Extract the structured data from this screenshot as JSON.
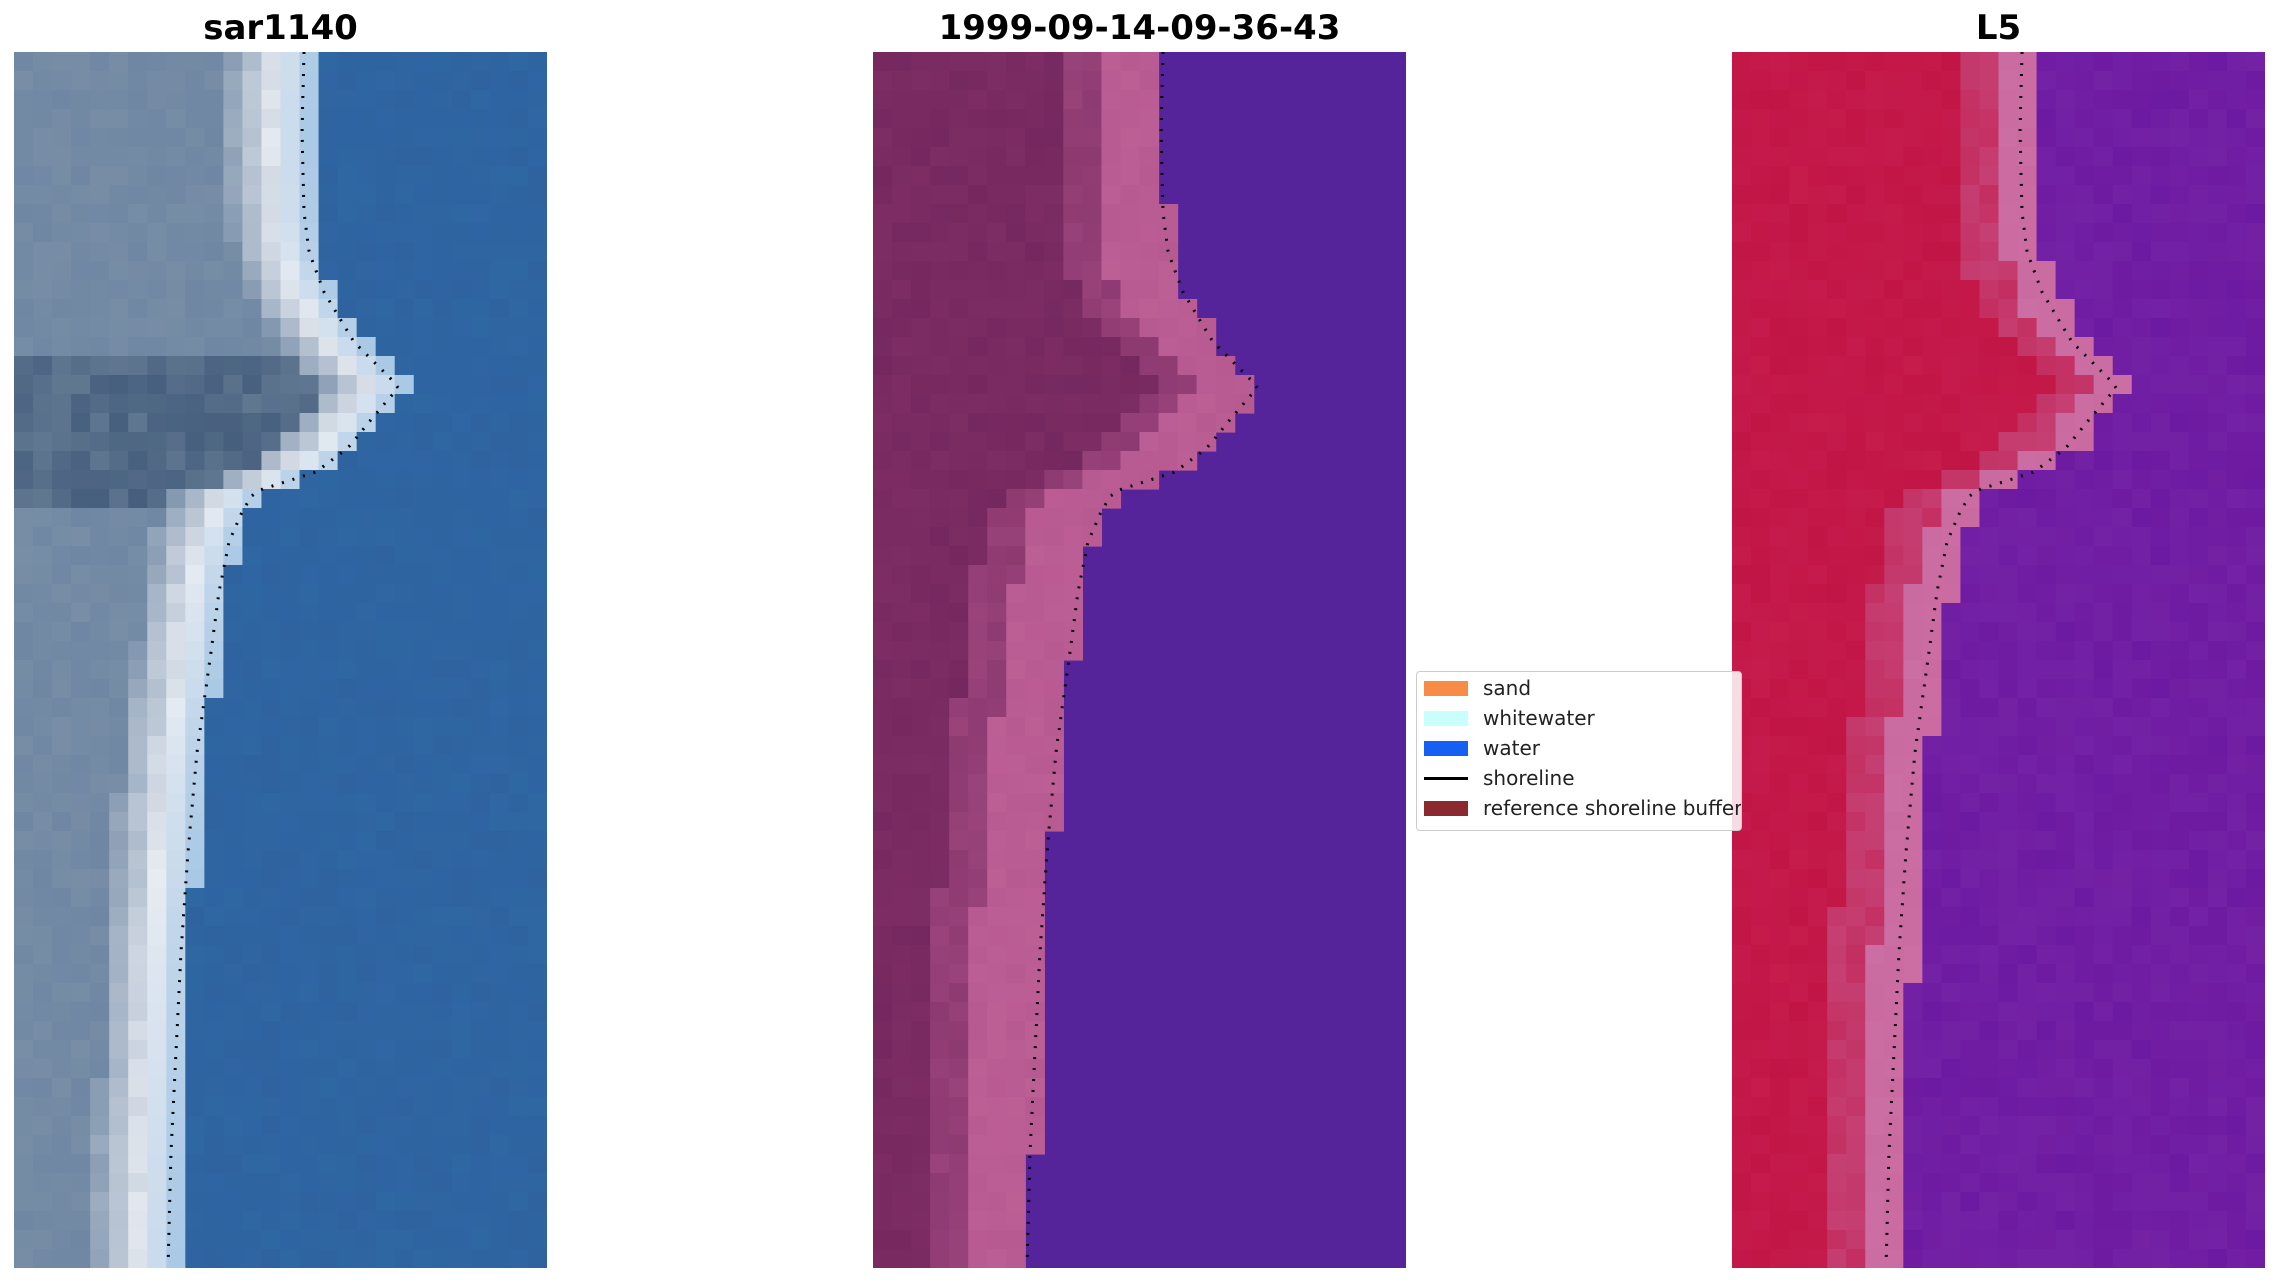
{
  "panels": [
    {
      "title": "sar1140",
      "kind": "rgb"
    },
    {
      "title": "1999-09-14-09-36-43",
      "kind": "classified"
    },
    {
      "title": "L5",
      "kind": "mndwi"
    }
  ],
  "legend": {
    "items": [
      {
        "label": "sand",
        "color": "#f68c45",
        "type": "patch"
      },
      {
        "label": "whitewater",
        "color": "#c8fffb",
        "type": "patch"
      },
      {
        "label": "water",
        "color": "#1560f2",
        "type": "patch"
      },
      {
        "label": "shoreline",
        "color": "#000000",
        "type": "line"
      },
      {
        "label": "reference shoreline buffer",
        "color": "#8b2a2e",
        "type": "patch"
      }
    ]
  },
  "colors": {
    "rgb_water": "#2e63a0",
    "rgb_land": "#6f87a3",
    "rgb_surf": "#e8ecf2",
    "class_land": "#75285f",
    "class_buffer": "#b85a92",
    "class_water": "#55239a",
    "mndwi_land": "#c11545",
    "mndwi_mid": "#c96aa0",
    "mndwi_water": "#6d1aa2",
    "shoreline": "#000000"
  }
}
